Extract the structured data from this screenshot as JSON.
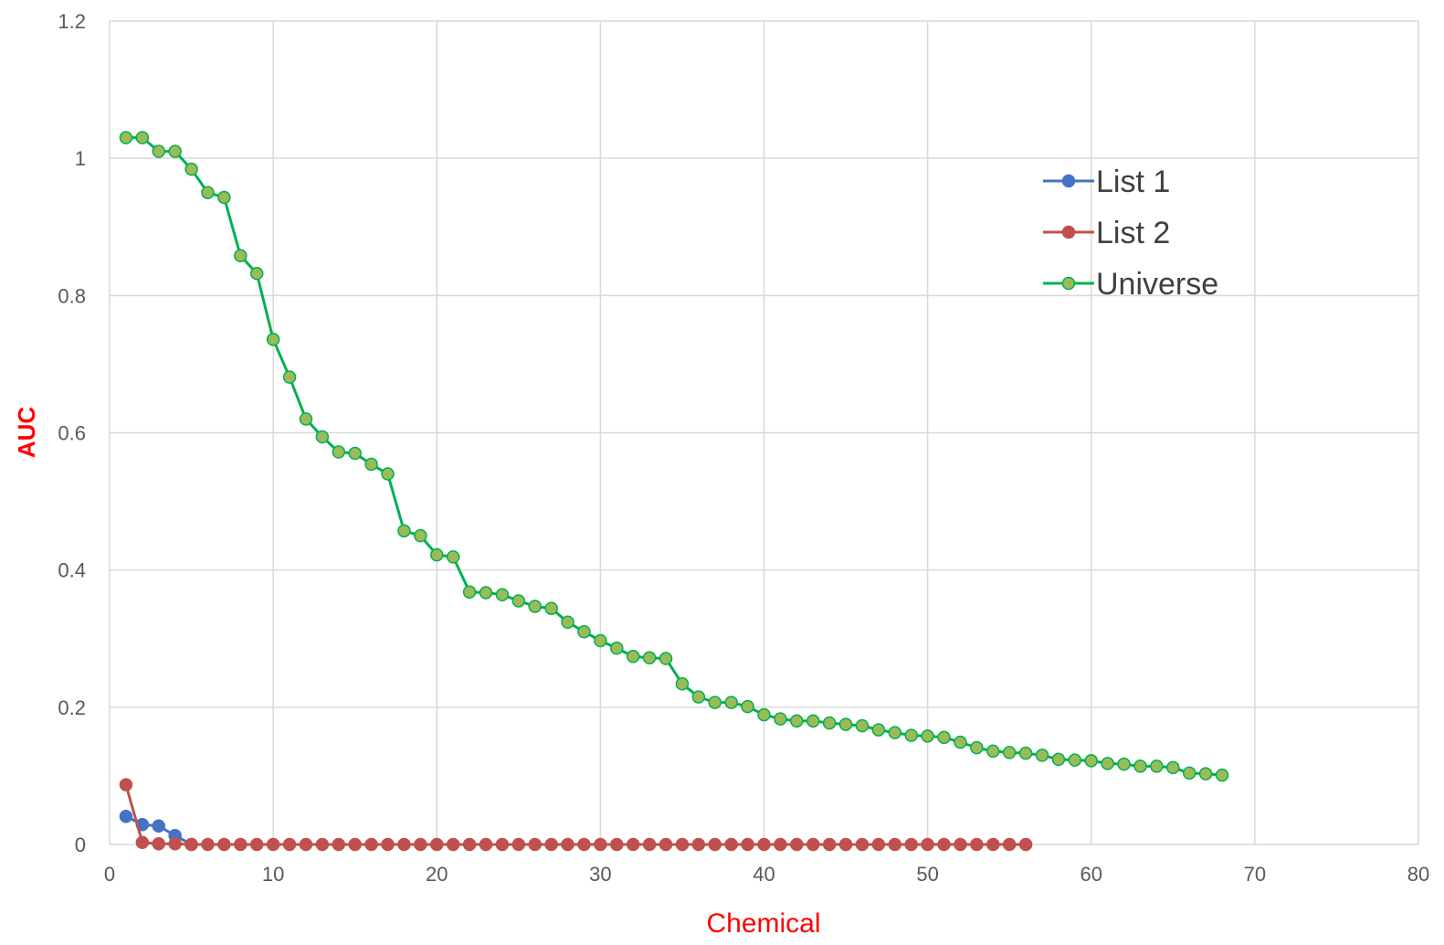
{
  "chart_data": {
    "type": "line",
    "title": "",
    "xlabel": "Chemical",
    "ylabel": "AUC",
    "xlim": [
      0,
      80
    ],
    "ylim": [
      0,
      1.2
    ],
    "xticks": [
      0,
      10,
      20,
      30,
      40,
      50,
      60,
      70,
      80
    ],
    "yticks": [
      0,
      0.2,
      0.4,
      0.6,
      0.8,
      1,
      1.2
    ],
    "xtick_labels": [
      "0",
      "10",
      "20",
      "30",
      "40",
      "50",
      "60",
      "70",
      "80"
    ],
    "ytick_labels": [
      "0",
      "0.2",
      "0.4",
      "0.6",
      "0.8",
      "1",
      "1.2"
    ],
    "grid": true,
    "legend_position": "upper-right",
    "series": [
      {
        "name": "List 1",
        "color": "#4472c4",
        "marker_fill": "#4472c4",
        "marker_stroke": "#4472c4",
        "x": [
          1,
          2,
          3,
          4,
          5
        ],
        "y": [
          0.041,
          0.029,
          0.027,
          0.013,
          0.0
        ]
      },
      {
        "name": "List 2",
        "color": "#c0504d",
        "marker_fill": "#c0504d",
        "marker_stroke": "#c0504d",
        "x": [
          1,
          2,
          3,
          4,
          5,
          6,
          7,
          8,
          9,
          10,
          11,
          12,
          13,
          14,
          15,
          16,
          17,
          18,
          19,
          20,
          21,
          22,
          23,
          24,
          25,
          26,
          27,
          28,
          29,
          30,
          31,
          32,
          33,
          34,
          35,
          36,
          37,
          38,
          39,
          40,
          41,
          42,
          43,
          44,
          45,
          46,
          47,
          48,
          49,
          50,
          51,
          52,
          53,
          54,
          55,
          56
        ],
        "y": [
          0.087,
          0.003,
          0.001,
          0.001,
          0,
          0,
          0,
          0,
          0,
          0,
          0,
          0,
          0,
          0,
          0,
          0,
          0,
          0,
          0,
          0,
          0,
          0,
          0,
          0,
          0,
          0,
          0,
          0,
          0,
          0,
          0,
          0,
          0,
          0,
          0,
          0,
          0,
          0,
          0,
          0,
          0,
          0,
          0,
          0,
          0,
          0,
          0,
          0,
          0,
          0,
          0,
          0,
          0,
          0,
          0,
          0
        ]
      },
      {
        "name": "Universe",
        "color": "#00b050",
        "marker_fill": "#9bbb59",
        "marker_stroke": "#00b050",
        "x": [
          1,
          2,
          3,
          4,
          5,
          6,
          7,
          8,
          9,
          10,
          11,
          12,
          13,
          14,
          15,
          16,
          17,
          18,
          19,
          20,
          21,
          22,
          23,
          24,
          25,
          26,
          27,
          28,
          29,
          30,
          31,
          32,
          33,
          34,
          35,
          36,
          37,
          38,
          39,
          40,
          41,
          42,
          43,
          44,
          45,
          46,
          47,
          48,
          49,
          50,
          51,
          52,
          53,
          54,
          55,
          56,
          57,
          58,
          59,
          60,
          61,
          62,
          63,
          64,
          65,
          66,
          67,
          68
        ],
        "y": [
          1.03,
          1.03,
          1.01,
          1.01,
          0.984,
          0.95,
          0.943,
          0.858,
          0.832,
          0.736,
          0.681,
          0.62,
          0.594,
          0.572,
          0.57,
          0.554,
          0.54,
          0.457,
          0.45,
          0.422,
          0.419,
          0.368,
          0.367,
          0.364,
          0.355,
          0.347,
          0.344,
          0.324,
          0.31,
          0.297,
          0.286,
          0.274,
          0.272,
          0.271,
          0.234,
          0.215,
          0.207,
          0.207,
          0.201,
          0.189,
          0.183,
          0.18,
          0.18,
          0.177,
          0.175,
          0.173,
          0.167,
          0.163,
          0.159,
          0.158,
          0.156,
          0.149,
          0.141,
          0.136,
          0.134,
          0.133,
          0.13,
          0.124,
          0.123,
          0.122,
          0.118,
          0.117,
          0.114,
          0.114,
          0.112,
          0.104,
          0.103,
          0.101
        ]
      }
    ]
  }
}
